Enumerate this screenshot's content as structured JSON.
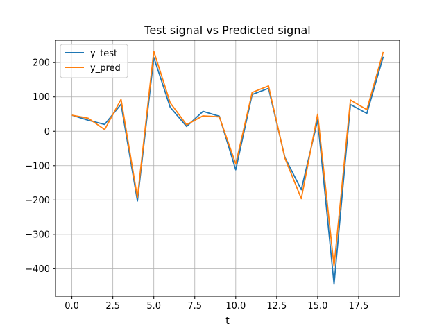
{
  "chart_data": {
    "type": "line",
    "title": "Test signal vs Predicted signal",
    "xlabel": "t",
    "ylabel": "",
    "xlim": [
      -1.0,
      20.0
    ],
    "ylim": [
      -480,
      265
    ],
    "grid": true,
    "legend_position": "top-left",
    "x_ticks": [
      0.0,
      2.5,
      5.0,
      7.5,
      10.0,
      12.5,
      15.0,
      17.5
    ],
    "x_tick_labels": [
      "0.0",
      "2.5",
      "5.0",
      "7.5",
      "10.0",
      "12.5",
      "15.0",
      "17.5"
    ],
    "y_ticks": [
      200,
      100,
      0,
      -100,
      -200,
      -300,
      -400
    ],
    "y_tick_labels": [
      "200",
      "100",
      "0",
      "−100",
      "−200",
      "−300",
      "−400"
    ],
    "x": [
      0,
      1,
      2,
      3,
      4,
      5,
      6,
      7,
      8,
      9,
      10,
      11,
      12,
      13,
      14,
      15,
      16,
      17,
      18,
      19
    ],
    "series": [
      {
        "name": "y_test",
        "color": "#1f77b4",
        "values": [
          47,
          32,
          20,
          79,
          -203,
          215,
          70,
          14,
          58,
          44,
          -112,
          107,
          125,
          -76,
          -170,
          33,
          -445,
          78,
          52,
          217
        ]
      },
      {
        "name": "y_pred",
        "color": "#ff7f0e",
        "values": [
          47,
          38,
          5,
          93,
          -193,
          233,
          83,
          19,
          45,
          42,
          -95,
          113,
          132,
          -78,
          -196,
          50,
          -393,
          91,
          63,
          231
        ]
      }
    ]
  }
}
